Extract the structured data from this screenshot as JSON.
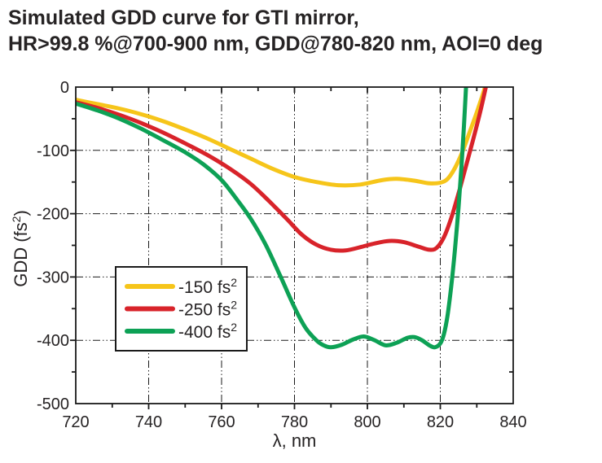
{
  "title": {
    "line1": "Simulated GDD curve for GTI mirror,",
    "line2": "HR>99.8 %@700-900 nm, GDD@780-820 nm, AOI=0 deg"
  },
  "colors": {
    "text": "#262324",
    "axis": "#1a1a1a",
    "grid": "#1a1a1a",
    "legend_border": "#1a1a1a",
    "background": "#ffffff"
  },
  "chart_data": {
    "type": "line",
    "title": "Simulated GDD curve for GTI mirror, HR>99.8 %@700-900 nm, GDD@780-820 nm, AOI=0 deg",
    "xlabel": "λ, nm",
    "ylabel": "GDD (fs²)",
    "xlim": [
      720,
      840
    ],
    "ylim": [
      -500,
      0
    ],
    "x_major_ticks": [
      720,
      740,
      760,
      780,
      800,
      820,
      840
    ],
    "x_minor_ticks": [
      730,
      750,
      770,
      790,
      810,
      830
    ],
    "y_major_ticks": [
      0,
      -100,
      -200,
      -300,
      -400,
      -500
    ],
    "y_minor_ticks": [
      -50,
      -150,
      -250,
      -350,
      -450
    ],
    "grid": "dash-dot lines at interior major ticks, both axes",
    "legend_position": "lower-left",
    "series": [
      {
        "name": "yellow-150",
        "label": "-150 fs²",
        "color": "#F6C51A",
        "points": [
          [
            720,
            -20
          ],
          [
            726,
            -27
          ],
          [
            732,
            -34
          ],
          [
            738,
            -43
          ],
          [
            744,
            -54
          ],
          [
            750,
            -67
          ],
          [
            756,
            -81
          ],
          [
            762,
            -97
          ],
          [
            768,
            -113
          ],
          [
            774,
            -129
          ],
          [
            780,
            -142
          ],
          [
            786,
            -150
          ],
          [
            792,
            -155
          ],
          [
            798,
            -154
          ],
          [
            804,
            -147
          ],
          [
            808,
            -145
          ],
          [
            813,
            -148
          ],
          [
            817,
            -152
          ],
          [
            820,
            -151
          ],
          [
            822,
            -145
          ],
          [
            824,
            -128
          ],
          [
            826,
            -103
          ],
          [
            828,
            -72
          ],
          [
            830,
            -40
          ],
          [
            832,
            -5
          ],
          [
            832.8,
            15
          ]
        ]
      },
      {
        "name": "red-250",
        "label": "-250 fs²",
        "color": "#D8232A",
        "points": [
          [
            720,
            -24
          ],
          [
            726,
            -33
          ],
          [
            732,
            -44
          ],
          [
            738,
            -57
          ],
          [
            744,
            -72
          ],
          [
            750,
            -89
          ],
          [
            756,
            -107
          ],
          [
            762,
            -128
          ],
          [
            768,
            -153
          ],
          [
            773,
            -180
          ],
          [
            778,
            -209
          ],
          [
            782,
            -233
          ],
          [
            786,
            -249
          ],
          [
            790,
            -257
          ],
          [
            794,
            -258
          ],
          [
            798,
            -253
          ],
          [
            802,
            -247
          ],
          [
            806,
            -243
          ],
          [
            810,
            -245
          ],
          [
            814,
            -252
          ],
          [
            817,
            -257
          ],
          [
            819,
            -254
          ],
          [
            821,
            -237
          ],
          [
            823,
            -207
          ],
          [
            825,
            -168
          ],
          [
            827,
            -126
          ],
          [
            829,
            -83
          ],
          [
            831,
            -38
          ],
          [
            832.8,
            8
          ]
        ]
      },
      {
        "name": "green-400",
        "label": "-400 fs²",
        "color": "#0DA155",
        "points": [
          [
            720,
            -26
          ],
          [
            726,
            -37
          ],
          [
            732,
            -50
          ],
          [
            738,
            -66
          ],
          [
            744,
            -84
          ],
          [
            750,
            -103
          ],
          [
            755,
            -122
          ],
          [
            760,
            -147
          ],
          [
            764,
            -176
          ],
          [
            768,
            -208
          ],
          [
            772,
            -248
          ],
          [
            776,
            -297
          ],
          [
            780,
            -348
          ],
          [
            783,
            -380
          ],
          [
            786,
            -400
          ],
          [
            788,
            -408
          ],
          [
            790,
            -411
          ],
          [
            793,
            -407
          ],
          [
            796,
            -399
          ],
          [
            799,
            -394
          ],
          [
            802,
            -400
          ],
          [
            805,
            -408
          ],
          [
            808,
            -404
          ],
          [
            811,
            -396
          ],
          [
            813,
            -395
          ],
          [
            815,
            -400
          ],
          [
            817,
            -408
          ],
          [
            818.5,
            -411
          ],
          [
            820,
            -405
          ],
          [
            821,
            -390
          ],
          [
            822,
            -360
          ],
          [
            823,
            -315
          ],
          [
            824,
            -258
          ],
          [
            825,
            -190
          ],
          [
            825.8,
            -125
          ],
          [
            826.5,
            -60
          ],
          [
            827.2,
            15
          ]
        ]
      }
    ]
  }
}
